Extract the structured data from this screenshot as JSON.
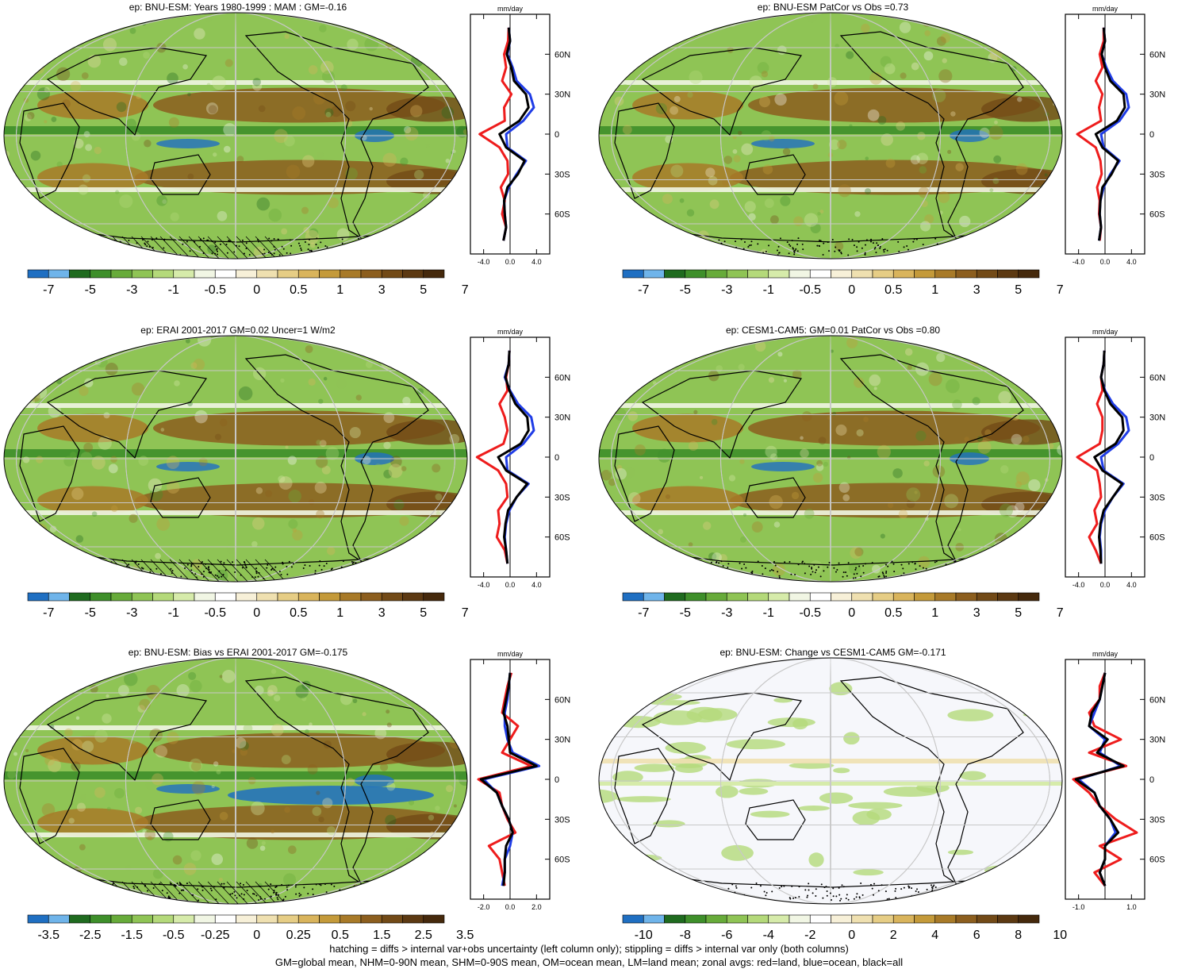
{
  "colors": {
    "precip_scale": [
      "#1f6fc2",
      "#6fb4ea",
      "#1f6b1f",
      "#3e8f2a",
      "#67ab3a",
      "#8fc455",
      "#b4d97a",
      "#d6ebaa",
      "#f1f6e4",
      "#ffffff",
      "#f7f0d8",
      "#efe0b0",
      "#e6cd85",
      "#d9b45c",
      "#c49a3a",
      "#a87a28",
      "#8c5e1e",
      "#724a17",
      "#5c3912",
      "#45290c"
    ],
    "ocean_fill": "#f6f7fb",
    "land_line": "#000000",
    "red_land": "#ee1c1c",
    "blue_ocean": "#1f3ce6",
    "black_all": "#000000"
  },
  "panels": [
    {
      "title": "ep: BNU-ESM: Years 1980-1999 : MAM : GM=-0.16",
      "zonal": {
        "unit": "mm/day",
        "xticks": [
          "-4.0",
          "0.0",
          "4.0"
        ],
        "xlim": [
          -6,
          6
        ],
        "yticks": [
          "60N",
          "30N",
          "0",
          "30S",
          "60S"
        ]
      },
      "colorbar": {
        "labels": [
          "-7",
          "-5",
          "-3",
          "-1",
          "-0.5",
          "0",
          "0.5",
          "1",
          "3",
          "5",
          "7"
        ]
      }
    },
    {
      "title": "ep: BNU-ESM PatCor vs Obs =0.73",
      "zonal": {
        "unit": "mm/day",
        "xticks": [
          "-4.0",
          "0.0",
          "4.0"
        ],
        "xlim": [
          -6,
          6
        ],
        "yticks": [
          "60N",
          "30N",
          "0",
          "30S",
          "60S"
        ]
      },
      "colorbar": {
        "labels": [
          "-7",
          "-5",
          "-3",
          "-1",
          "-0.5",
          "0",
          "0.5",
          "1",
          "3",
          "5",
          "7"
        ]
      }
    },
    {
      "title": "ep: ERAI 2001-2017 GM=0.02 Uncer=1 W/m2",
      "zonal": {
        "unit": "mm/day",
        "xticks": [
          "-4.0",
          "0.0",
          "4.0"
        ],
        "xlim": [
          -6,
          6
        ],
        "yticks": [
          "60N",
          "30N",
          "0",
          "30S",
          "60S"
        ]
      },
      "colorbar": {
        "labels": [
          "-7",
          "-5",
          "-3",
          "-1",
          "-0.5",
          "0",
          "0.5",
          "1",
          "3",
          "5",
          "7"
        ]
      }
    },
    {
      "title": "ep: CESM1-CAM5: GM=0.01 PatCor vs Obs =0.80",
      "zonal": {
        "unit": "mm/day",
        "xticks": [
          "-4.0",
          "0.0",
          "4.0"
        ],
        "xlim": [
          -6,
          6
        ],
        "yticks": [
          "60N",
          "30N",
          "0",
          "30S",
          "60S"
        ]
      },
      "colorbar": {
        "labels": [
          "-7",
          "-5",
          "-3",
          "-1",
          "-0.5",
          "0",
          "0.5",
          "1",
          "3",
          "5",
          "7"
        ]
      }
    },
    {
      "title": "ep: BNU-ESM: Bias vs ERAI 2001-2017 GM=-0.175",
      "zonal": {
        "unit": "mm/day",
        "xticks": [
          "-2.0",
          "0.0",
          "2.0"
        ],
        "xlim": [
          -3,
          3
        ],
        "yticks": [
          "60N",
          "30N",
          "0",
          "30S",
          "60S"
        ]
      },
      "colorbar": {
        "labels": [
          "-3.5",
          "-2.5",
          "-1.5",
          "-0.5",
          "-0.25",
          "0",
          "0.25",
          "0.5",
          "1.5",
          "2.5",
          "3.5"
        ]
      }
    },
    {
      "title": "ep: BNU-ESM: Change vs CESM1-CAM5 GM=-0.171",
      "zonal": {
        "unit": "mm/day",
        "xticks": [
          "-1.0",
          "1.0"
        ],
        "xlim": [
          -1.5,
          1.5
        ],
        "yticks": [
          "60N",
          "30N",
          "0",
          "30S",
          "60S"
        ]
      },
      "colorbar": {
        "labels": [
          "-10",
          "-8",
          "-6",
          "-4",
          "-2",
          "0",
          "2",
          "4",
          "6",
          "8",
          "10"
        ]
      }
    }
  ],
  "footer": {
    "line1": "hatching = diffs > internal var+obs uncertainty (left column only); stippling = diffs > internal var only (both columns)",
    "line2": "GM=global mean, NHM=0-90N mean, SHM=0-90S mean, OM=ocean mean, LM=land mean; zonal avgs: red=land, blue=ocean, black=all"
  },
  "chart_data": [
    {
      "type": "line",
      "title": "ep: BNU-ESM: Years 1980-1999 : MAM : GM=-0.16",
      "xlabel": "mm/day",
      "xlim": [
        -6,
        6
      ],
      "ylim": [
        -90,
        90
      ],
      "x": [
        -80,
        -70,
        -60,
        -50,
        -40,
        -30,
        -20,
        -10,
        0,
        10,
        20,
        30,
        40,
        50,
        60,
        70,
        80
      ],
      "series": [
        {
          "name": "red=land",
          "values": [
            -1.0,
            -0.6,
            -1.2,
            -0.8,
            -1.4,
            -0.3,
            -0.4,
            -1.6,
            -4.6,
            -0.8,
            -0.9,
            0.2,
            -1.2,
            -0.6,
            -0.9,
            -0.3,
            -0.2
          ]
        },
        {
          "name": "blue=ocean",
          "values": [
            -1.0,
            -0.6,
            -0.8,
            -0.9,
            -0.2,
            1.0,
            2.4,
            -0.4,
            -0.6,
            2.0,
            3.6,
            3.0,
            1.0,
            0.4,
            -0.4,
            0.0,
            -0.2
          ]
        },
        {
          "name": "black=all",
          "values": [
            -1.0,
            -0.6,
            -0.8,
            -0.9,
            -0.4,
            1.2,
            2.2,
            -0.6,
            -1.6,
            1.4,
            2.8,
            2.4,
            0.6,
            0.2,
            -0.5,
            0.0,
            -0.2
          ]
        }
      ]
    },
    {
      "type": "line",
      "title": "ep: BNU-ESM PatCor vs Obs =0.73",
      "xlabel": "mm/day",
      "xlim": [
        -6,
        6
      ],
      "ylim": [
        -90,
        90
      ],
      "x": [
        -80,
        -70,
        -60,
        -50,
        -40,
        -30,
        -20,
        -10,
        0,
        10,
        20,
        30,
        40,
        50,
        60,
        70,
        80
      ],
      "series": [
        {
          "name": "red=land",
          "values": [
            -0.8,
            -0.6,
            -0.9,
            -0.8,
            -1.2,
            -0.5,
            -0.7,
            -1.4,
            -4.2,
            -0.6,
            -0.9,
            -0.4,
            -1.4,
            -0.4,
            -0.8,
            -0.2,
            -0.2
          ]
        },
        {
          "name": "blue=ocean",
          "values": [
            -0.9,
            -0.6,
            -0.8,
            -0.7,
            -0.2,
            0.8,
            2.2,
            -0.2,
            -0.6,
            2.2,
            3.6,
            3.2,
            1.2,
            0.2,
            -0.5,
            0.0,
            -0.2
          ]
        },
        {
          "name": "black=all",
          "values": [
            -0.9,
            -0.6,
            -0.8,
            -0.7,
            -0.4,
            1.0,
            2.0,
            -0.4,
            -1.4,
            1.8,
            3.0,
            2.8,
            0.8,
            0.0,
            -0.5,
            0.0,
            -0.2
          ]
        }
      ]
    },
    {
      "type": "line",
      "title": "ep: ERAI 2001-2017 GM=0.02 Uncer=1 W/m2",
      "xlabel": "mm/day",
      "xlim": [
        -6,
        6
      ],
      "ylim": [
        -90,
        90
      ],
      "x": [
        -80,
        -70,
        -60,
        -50,
        -40,
        -30,
        -20,
        -10,
        0,
        10,
        20,
        30,
        40,
        50,
        60,
        70,
        80
      ],
      "series": [
        {
          "name": "red=land",
          "values": [
            -0.4,
            -0.8,
            -2.0,
            -1.6,
            -1.8,
            -0.4,
            -0.6,
            -1.8,
            -5.0,
            -1.0,
            -0.4,
            -0.8,
            -1.6,
            -0.4,
            -0.6,
            -0.2,
            -0.1
          ]
        },
        {
          "name": "blue=ocean",
          "values": [
            -0.4,
            -0.6,
            -0.8,
            -0.6,
            -0.1,
            1.0,
            2.8,
            -0.4,
            -0.6,
            2.0,
            3.6,
            3.2,
            1.2,
            0.0,
            -0.8,
            -0.2,
            -0.1
          ]
        },
        {
          "name": "black=all",
          "values": [
            -0.4,
            -0.6,
            -0.9,
            -0.7,
            -0.3,
            1.0,
            2.6,
            -0.6,
            -1.8,
            1.6,
            2.8,
            2.6,
            0.8,
            -0.1,
            -0.7,
            -0.2,
            -0.1
          ]
        }
      ]
    },
    {
      "type": "line",
      "title": "ep: CESM1-CAM5: GM=0.01 PatCor vs Obs =0.80",
      "xlabel": "mm/day",
      "xlim": [
        -6,
        6
      ],
      "ylim": [
        -90,
        90
      ],
      "x": [
        -80,
        -70,
        -60,
        -50,
        -40,
        -30,
        -20,
        -10,
        0,
        10,
        20,
        30,
        40,
        50,
        60,
        70,
        80
      ],
      "series": [
        {
          "name": "red=land",
          "values": [
            -0.6,
            -1.4,
            -2.4,
            -1.2,
            -1.6,
            -0.6,
            -0.8,
            -1.2,
            -4.2,
            -0.8,
            -0.4,
            -0.4,
            -1.2,
            -0.4,
            -0.6,
            -0.2,
            -0.1
          ]
        },
        {
          "name": "blue=ocean",
          "values": [
            -0.6,
            -0.6,
            -0.8,
            -0.6,
            0.0,
            1.2,
            2.8,
            -0.2,
            -0.6,
            2.0,
            3.6,
            3.2,
            1.2,
            0.0,
            -0.6,
            -0.2,
            -0.1
          ]
        },
        {
          "name": "black=all",
          "values": [
            -0.6,
            -0.7,
            -0.9,
            -0.7,
            -0.2,
            1.2,
            2.6,
            -0.4,
            -1.6,
            1.6,
            2.8,
            2.6,
            0.8,
            -0.1,
            -0.6,
            -0.2,
            -0.1
          ]
        }
      ]
    },
    {
      "type": "line",
      "title": "ep: BNU-ESM: Bias vs ERAI 2001-2017 GM=-0.175",
      "xlabel": "mm/day",
      "xlim": [
        -3,
        3
      ],
      "ylim": [
        -90,
        90
      ],
      "x": [
        -80,
        -70,
        -60,
        -50,
        -40,
        -30,
        -20,
        -10,
        0,
        10,
        20,
        30,
        40,
        50,
        60,
        70,
        80
      ],
      "series": [
        {
          "name": "red=land",
          "values": [
            -0.4,
            -0.6,
            -0.8,
            -1.6,
            0.4,
            -0.2,
            -0.6,
            -0.8,
            -2.4,
            1.6,
            -0.6,
            0.0,
            0.6,
            -0.6,
            -0.4,
            -0.2,
            0.1
          ]
        },
        {
          "name": "blue=ocean",
          "values": [
            -0.6,
            -0.4,
            -0.4,
            0.0,
            0.2,
            -0.1,
            -0.6,
            -1.0,
            -2.0,
            2.2,
            0.2,
            -0.2,
            -0.4,
            -0.4,
            -0.2,
            -0.1,
            0.0
          ]
        },
        {
          "name": "black=all",
          "values": [
            -0.5,
            -0.4,
            -0.4,
            -0.3,
            0.2,
            -0.1,
            -0.6,
            -1.0,
            -2.2,
            2.0,
            0.0,
            -0.1,
            -0.2,
            -0.5,
            -0.3,
            -0.1,
            0.0
          ]
        }
      ]
    },
    {
      "type": "line",
      "title": "ep: BNU-ESM: Change vs CESM1-CAM5 GM=-0.171",
      "xlabel": "mm/day",
      "xlim": [
        -1.5,
        1.5
      ],
      "ylim": [
        -90,
        90
      ],
      "x": [
        -80,
        -70,
        -60,
        -50,
        -40,
        -30,
        -20,
        -10,
        0,
        10,
        20,
        30,
        40,
        50,
        60,
        70,
        80
      ],
      "series": [
        {
          "name": "red=land",
          "values": [
            0.0,
            -0.4,
            0.6,
            -0.2,
            1.2,
            0.4,
            -0.2,
            -0.6,
            -1.2,
            0.8,
            -0.6,
            0.6,
            -0.4,
            -0.6,
            -0.2,
            -0.2,
            0.0
          ]
        },
        {
          "name": "blue=ocean",
          "values": [
            0.0,
            -0.2,
            0.0,
            0.0,
            0.4,
            0.2,
            -0.2,
            -0.4,
            -1.0,
            0.6,
            -0.2,
            0.0,
            -0.6,
            -0.4,
            -0.2,
            -0.1,
            0.0
          ]
        },
        {
          "name": "black=all",
          "values": [
            0.0,
            -0.2,
            0.0,
            0.0,
            0.5,
            0.2,
            -0.2,
            -0.4,
            -1.1,
            0.7,
            -0.3,
            0.1,
            -0.6,
            -0.5,
            -0.2,
            -0.1,
            0.0
          ]
        }
      ]
    }
  ]
}
